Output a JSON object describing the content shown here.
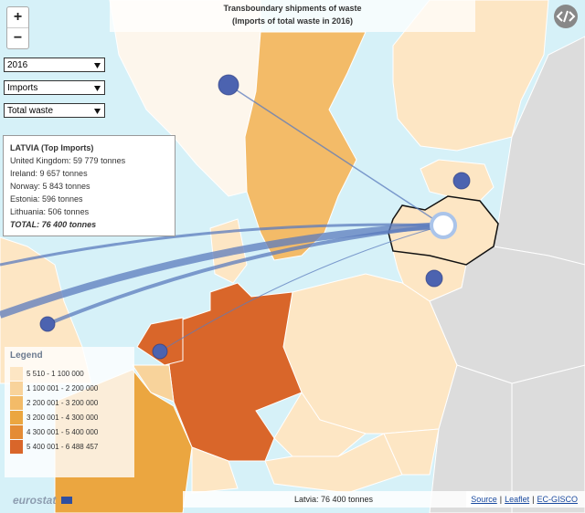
{
  "header": {
    "title": "Transboundary shipments of waste",
    "subtitle": "(Imports of total waste in 2016)"
  },
  "zoom": {
    "in": "+",
    "out": "−"
  },
  "controls": {
    "year": "2016",
    "flow": "Imports",
    "waste": "Total waste"
  },
  "info": {
    "title": "LATVIA (Top Imports)",
    "rows": [
      "United Kingdom: 59 779 tonnes",
      "Ireland: 9 657 tonnes",
      "Norway: 5 843 tonnes",
      "Estonia: 596 tonnes",
      "Lithuania: 506 tonnes"
    ],
    "total": "TOTAL: 76 400 tonnes"
  },
  "legend": {
    "title": "Legend",
    "items": [
      {
        "label": "5 510 - 1 100 000",
        "color": "#fde6c4"
      },
      {
        "label": "1 100 001 - 2 200 000",
        "color": "#f8d39b"
      },
      {
        "label": "2 200 001 - 3 200 000",
        "color": "#f3bb68"
      },
      {
        "label": "3 200 001 - 4 300 000",
        "color": "#eba640"
      },
      {
        "label": "4 300 001 - 5 400 000",
        "color": "#e48b35"
      },
      {
        "label": "5 400 001 - 6 488 457",
        "color": "#d9662a"
      }
    ]
  },
  "footer": {
    "logo": "eurostat",
    "summary": "Latvia: 76 400 tonnes",
    "links": [
      "Source",
      "Leaflet",
      "EC-GISCO"
    ],
    "separator": "|"
  }
}
